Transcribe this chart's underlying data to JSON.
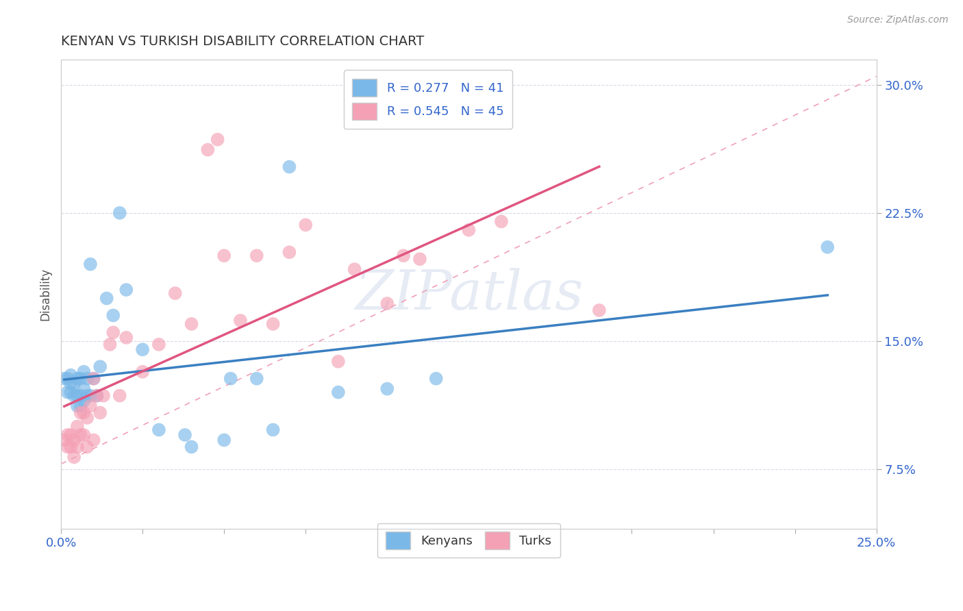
{
  "title": "KENYAN VS TURKISH DISABILITY CORRELATION CHART",
  "source": "Source: ZipAtlas.com",
  "ylabel_label": "Disability",
  "xlim": [
    0.0,
    0.25
  ],
  "ylim": [
    0.04,
    0.315
  ],
  "yticks": [
    0.075,
    0.15,
    0.225,
    0.3
  ],
  "ytick_labels": [
    "7.5%",
    "15.0%",
    "22.5%",
    "30.0%"
  ],
  "xticks": [
    0.0,
    0.025,
    0.05,
    0.075,
    0.1,
    0.125,
    0.15,
    0.175,
    0.2,
    0.225,
    0.25
  ],
  "kenyan_color": "#7ab8e8",
  "turkish_color": "#f4a0b5",
  "kenyan_line_color": "#3a7fc1",
  "turkish_line_color": "#e05580",
  "diagonal_color": "#f0a0b8",
  "kenyan_R": 0.277,
  "kenyan_N": 41,
  "turkish_R": 0.545,
  "turkish_N": 45,
  "kenyan_x": [
    0.001,
    0.002,
    0.002,
    0.003,
    0.003,
    0.003,
    0.004,
    0.004,
    0.005,
    0.005,
    0.005,
    0.006,
    0.006,
    0.006,
    0.007,
    0.007,
    0.007,
    0.008,
    0.008,
    0.009,
    0.009,
    0.01,
    0.011,
    0.012,
    0.014,
    0.016,
    0.018,
    0.02,
    0.025,
    0.03,
    0.038,
    0.04,
    0.05,
    0.052,
    0.06,
    0.065,
    0.07,
    0.085,
    0.1,
    0.115,
    0.235
  ],
  "kenyan_y": [
    0.128,
    0.128,
    0.12,
    0.125,
    0.12,
    0.13,
    0.118,
    0.125,
    0.112,
    0.118,
    0.128,
    0.112,
    0.118,
    0.128,
    0.115,
    0.122,
    0.132,
    0.118,
    0.128,
    0.118,
    0.195,
    0.128,
    0.118,
    0.135,
    0.175,
    0.165,
    0.225,
    0.18,
    0.145,
    0.098,
    0.095,
    0.088,
    0.092,
    0.128,
    0.128,
    0.098,
    0.252,
    0.12,
    0.122,
    0.128,
    0.205
  ],
  "turkish_x": [
    0.001,
    0.002,
    0.002,
    0.003,
    0.003,
    0.004,
    0.004,
    0.005,
    0.005,
    0.006,
    0.006,
    0.007,
    0.007,
    0.008,
    0.008,
    0.009,
    0.01,
    0.01,
    0.011,
    0.012,
    0.013,
    0.015,
    0.016,
    0.018,
    0.02,
    0.025,
    0.03,
    0.035,
    0.04,
    0.045,
    0.048,
    0.05,
    0.055,
    0.06,
    0.065,
    0.07,
    0.075,
    0.085,
    0.09,
    0.1,
    0.105,
    0.11,
    0.125,
    0.135,
    0.165
  ],
  "turkish_y": [
    0.092,
    0.088,
    0.095,
    0.088,
    0.095,
    0.082,
    0.092,
    0.1,
    0.088,
    0.108,
    0.095,
    0.095,
    0.108,
    0.088,
    0.105,
    0.112,
    0.092,
    0.128,
    0.118,
    0.108,
    0.118,
    0.148,
    0.155,
    0.118,
    0.152,
    0.132,
    0.148,
    0.178,
    0.16,
    0.262,
    0.268,
    0.2,
    0.162,
    0.2,
    0.16,
    0.202,
    0.218,
    0.138,
    0.192,
    0.172,
    0.2,
    0.198,
    0.215,
    0.22,
    0.168
  ],
  "bg_color": "#ffffff",
  "grid_color": "#d8d8e8"
}
